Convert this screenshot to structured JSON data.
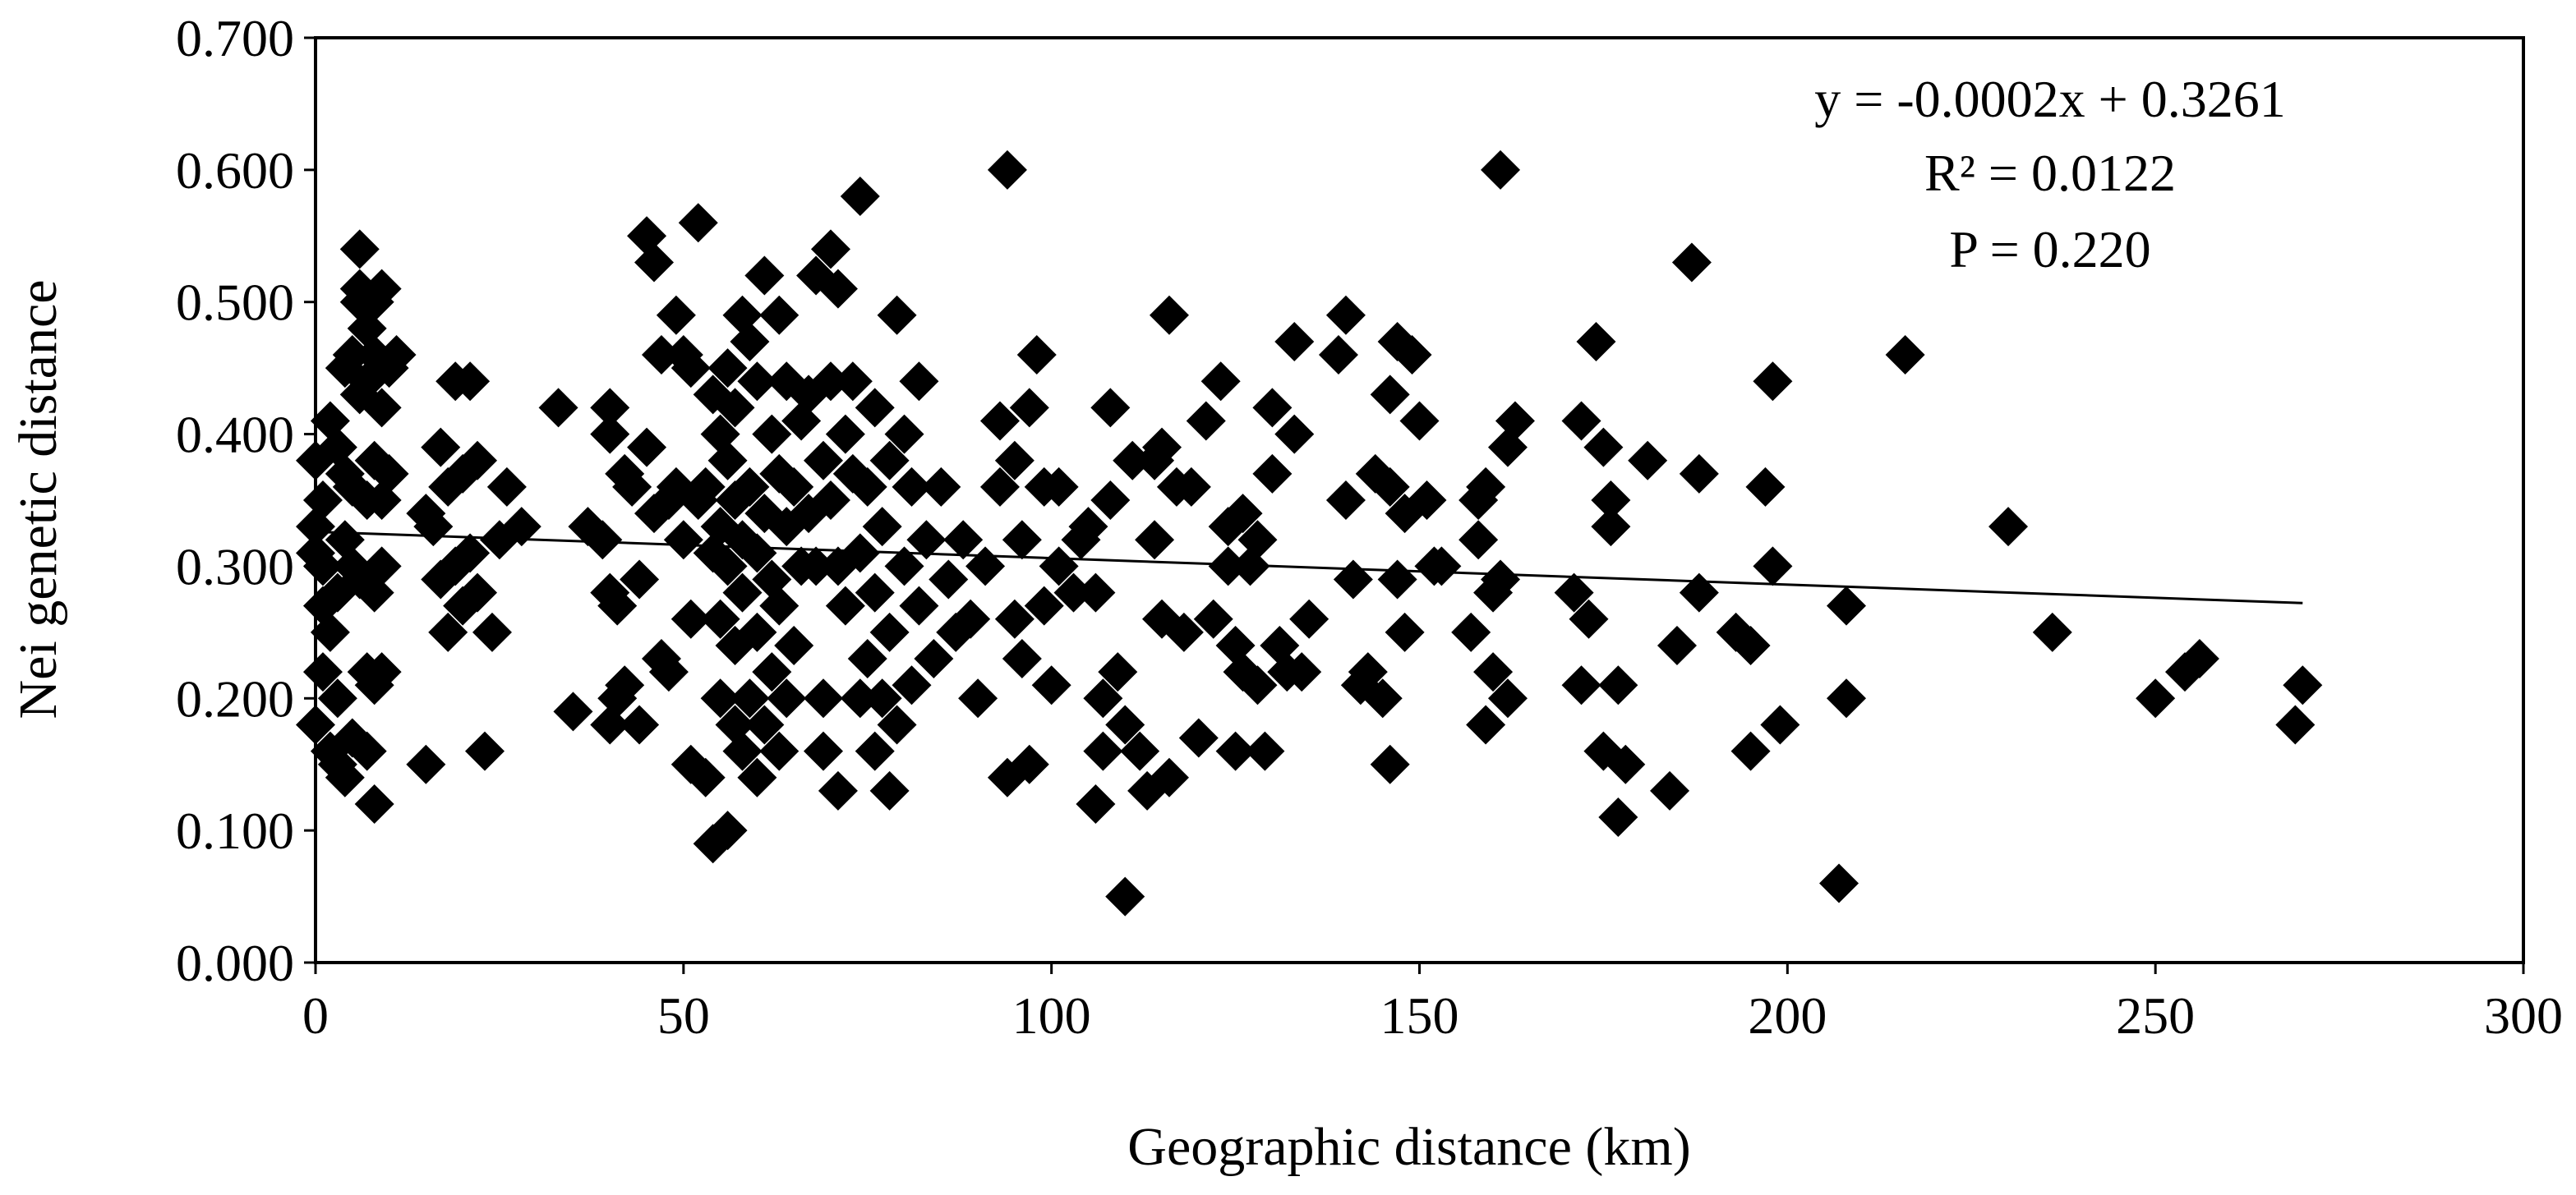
{
  "chart_data": {
    "type": "scatter",
    "title": "",
    "xlabel": "Geographic distance (km)",
    "ylabel": "Nei genetic distance",
    "xlim": [
      0,
      300
    ],
    "ylim": [
      0,
      0.7
    ],
    "x_ticks": [
      "0",
      "50",
      "100",
      "150",
      "200",
      "250",
      "300"
    ],
    "y_ticks": [
      "0.000",
      "0.100",
      "0.200",
      "0.300",
      "0.400",
      "0.500",
      "0.600",
      "0.700"
    ],
    "grid": false,
    "legend": "none",
    "marker": "diamond",
    "marker_color": "#000000",
    "annotations": [
      "y = -0.0002x + 0.3261",
      "R² = 0.0122",
      "P = 0.220"
    ],
    "trendline": {
      "slope": -0.0002,
      "intercept": 0.3261,
      "x_range": [
        0,
        270
      ]
    },
    "series": [
      {
        "points": [
          [
            0,
            0.38
          ],
          [
            0,
            0.33
          ],
          [
            0,
            0.31
          ],
          [
            0,
            0.18
          ],
          [
            1,
            0.35
          ],
          [
            1,
            0.22
          ],
          [
            1,
            0.3
          ],
          [
            1,
            0.27
          ],
          [
            2,
            0.41
          ],
          [
            2,
            0.25
          ],
          [
            2,
            0.16
          ],
          [
            3,
            0.39
          ],
          [
            3,
            0.2
          ],
          [
            3,
            0.28
          ],
          [
            3,
            0.15
          ],
          [
            4,
            0.37
          ],
          [
            4,
            0.14
          ],
          [
            4,
            0.32
          ],
          [
            4,
            0.45
          ],
          [
            5,
            0.3
          ],
          [
            5,
            0.17
          ],
          [
            5,
            0.36
          ],
          [
            5,
            0.46
          ],
          [
            6,
            0.43
          ],
          [
            6,
            0.29
          ],
          [
            6,
            0.54
          ],
          [
            6,
            0.51
          ],
          [
            6,
            0.5
          ],
          [
            7,
            0.48
          ],
          [
            7,
            0.35
          ],
          [
            7,
            0.22
          ],
          [
            7,
            0.16
          ],
          [
            7,
            0.44
          ],
          [
            8,
            0.46
          ],
          [
            8,
            0.38
          ],
          [
            8,
            0.28
          ],
          [
            8,
            0.21
          ],
          [
            8,
            0.5
          ],
          [
            8,
            0.12
          ],
          [
            9,
            0.51
          ],
          [
            9,
            0.42
          ],
          [
            9,
            0.35
          ],
          [
            9,
            0.3
          ],
          [
            9,
            0.22
          ],
          [
            10,
            0.45
          ],
          [
            10,
            0.37
          ],
          [
            11,
            0.46
          ],
          [
            15,
            0.34
          ],
          [
            15,
            0.15
          ],
          [
            16,
            0.33
          ],
          [
            17,
            0.39
          ],
          [
            17,
            0.29
          ],
          [
            18,
            0.25
          ],
          [
            18,
            0.36
          ],
          [
            19,
            0.44
          ],
          [
            19,
            0.3
          ],
          [
            20,
            0.37
          ],
          [
            20,
            0.27
          ],
          [
            21,
            0.44
          ],
          [
            21,
            0.31
          ],
          [
            22,
            0.38
          ],
          [
            22,
            0.28
          ],
          [
            23,
            0.16
          ],
          [
            24,
            0.25
          ],
          [
            25,
            0.32
          ],
          [
            26,
            0.36
          ],
          [
            28,
            0.33
          ],
          [
            33,
            0.42
          ],
          [
            35,
            0.19
          ],
          [
            37,
            0.33
          ],
          [
            39,
            0.32
          ],
          [
            40,
            0.42
          ],
          [
            40,
            0.4
          ],
          [
            40,
            0.28
          ],
          [
            40,
            0.18
          ],
          [
            41,
            0.2
          ],
          [
            41,
            0.27
          ],
          [
            42,
            0.37
          ],
          [
            42,
            0.21
          ],
          [
            43,
            0.36
          ],
          [
            44,
            0.29
          ],
          [
            44,
            0.18
          ],
          [
            45,
            0.39
          ],
          [
            45,
            0.55
          ],
          [
            46,
            0.34
          ],
          [
            46,
            0.53
          ],
          [
            47,
            0.23
          ],
          [
            47,
            0.46
          ],
          [
            48,
            0.35
          ],
          [
            48,
            0.22
          ],
          [
            49,
            0.49
          ],
          [
            49,
            0.36
          ],
          [
            50,
            0.46
          ],
          [
            50,
            0.32
          ],
          [
            51,
            0.15
          ],
          [
            51,
            0.26
          ],
          [
            51,
            0.45
          ],
          [
            52,
            0.56
          ],
          [
            52,
            0.35
          ],
          [
            53,
            0.14
          ],
          [
            53,
            0.36
          ],
          [
            54,
            0.09
          ],
          [
            54,
            0.31
          ],
          [
            54,
            0.43
          ],
          [
            55,
            0.2
          ],
          [
            55,
            0.26
          ],
          [
            55,
            0.4
          ],
          [
            55,
            0.33
          ],
          [
            56,
            0.1
          ],
          [
            56,
            0.38
          ],
          [
            56,
            0.45
          ],
          [
            56,
            0.3
          ],
          [
            57,
            0.18
          ],
          [
            57,
            0.24
          ],
          [
            57,
            0.42
          ],
          [
            57,
            0.35
          ],
          [
            58,
            0.16
          ],
          [
            58,
            0.28
          ],
          [
            58,
            0.49
          ],
          [
            58,
            0.32
          ],
          [
            59,
            0.2
          ],
          [
            59,
            0.36
          ],
          [
            59,
            0.47
          ],
          [
            60,
            0.14
          ],
          [
            60,
            0.25
          ],
          [
            60,
            0.31
          ],
          [
            60,
            0.44
          ],
          [
            61,
            0.18
          ],
          [
            61,
            0.34
          ],
          [
            61,
            0.52
          ],
          [
            62,
            0.22
          ],
          [
            62,
            0.29
          ],
          [
            62,
            0.4
          ],
          [
            63,
            0.16
          ],
          [
            63,
            0.27
          ],
          [
            63,
            0.37
          ],
          [
            63,
            0.49
          ],
          [
            64,
            0.2
          ],
          [
            64,
            0.33
          ],
          [
            64,
            0.44
          ],
          [
            65,
            0.24
          ],
          [
            65,
            0.36
          ],
          [
            66,
            0.3
          ],
          [
            66,
            0.41
          ],
          [
            67,
            0.34
          ],
          [
            67,
            0.43
          ],
          [
            68,
            0.3
          ],
          [
            68,
            0.52
          ],
          [
            69,
            0.16
          ],
          [
            69,
            0.38
          ],
          [
            69,
            0.2
          ],
          [
            70,
            0.35
          ],
          [
            70,
            0.44
          ],
          [
            70,
            0.54
          ],
          [
            71,
            0.13
          ],
          [
            71,
            0.3
          ],
          [
            71,
            0.51
          ],
          [
            72,
            0.4
          ],
          [
            72,
            0.27
          ],
          [
            73,
            0.37
          ],
          [
            73,
            0.44
          ],
          [
            74,
            0.31
          ],
          [
            74,
            0.2
          ],
          [
            74,
            0.58
          ],
          [
            75,
            0.23
          ],
          [
            75,
            0.36
          ],
          [
            76,
            0.16
          ],
          [
            76,
            0.28
          ],
          [
            76,
            0.42
          ],
          [
            77,
            0.2
          ],
          [
            77,
            0.33
          ],
          [
            78,
            0.13
          ],
          [
            78,
            0.25
          ],
          [
            78,
            0.38
          ],
          [
            79,
            0.49
          ],
          [
            79,
            0.18
          ],
          [
            80,
            0.3
          ],
          [
            80,
            0.4
          ],
          [
            81,
            0.21
          ],
          [
            81,
            0.36
          ],
          [
            82,
            0.27
          ],
          [
            82,
            0.44
          ],
          [
            83,
            0.32
          ],
          [
            84,
            0.23
          ],
          [
            85,
            0.36
          ],
          [
            86,
            0.29
          ],
          [
            87,
            0.25
          ],
          [
            88,
            0.32
          ],
          [
            89,
            0.26
          ],
          [
            90,
            0.2
          ],
          [
            91,
            0.3
          ],
          [
            93,
            0.36
          ],
          [
            93,
            0.41
          ],
          [
            94,
            0.6
          ],
          [
            94,
            0.14
          ],
          [
            95,
            0.26
          ],
          [
            95,
            0.38
          ],
          [
            96,
            0.32
          ],
          [
            96,
            0.23
          ],
          [
            97,
            0.15
          ],
          [
            97,
            0.42
          ],
          [
            98,
            0.46
          ],
          [
            99,
            0.27
          ],
          [
            99,
            0.36
          ],
          [
            100,
            0.21
          ],
          [
            101,
            0.3
          ],
          [
            101,
            0.36
          ],
          [
            103,
            0.28
          ],
          [
            104,
            0.32
          ],
          [
            105,
            0.33
          ],
          [
            106,
            0.12
          ],
          [
            106,
            0.28
          ],
          [
            107,
            0.2
          ],
          [
            107,
            0.16
          ],
          [
            108,
            0.42
          ],
          [
            108,
            0.35
          ],
          [
            109,
            0.22
          ],
          [
            110,
            0.05
          ],
          [
            110,
            0.18
          ],
          [
            111,
            0.38
          ],
          [
            112,
            0.16
          ],
          [
            113,
            0.13
          ],
          [
            114,
            0.32
          ],
          [
            114,
            0.38
          ],
          [
            115,
            0.26
          ],
          [
            115,
            0.39
          ],
          [
            116,
            0.14
          ],
          [
            116,
            0.49
          ],
          [
            117,
            0.36
          ],
          [
            118,
            0.25
          ],
          [
            119,
            0.36
          ],
          [
            120,
            0.17
          ],
          [
            121,
            0.41
          ],
          [
            122,
            0.26
          ],
          [
            123,
            0.44
          ],
          [
            124,
            0.3
          ],
          [
            124,
            0.33
          ],
          [
            125,
            0.16
          ],
          [
            125,
            0.24
          ],
          [
            126,
            0.22
          ],
          [
            126,
            0.34
          ],
          [
            127,
            0.3
          ],
          [
            128,
            0.21
          ],
          [
            128,
            0.32
          ],
          [
            129,
            0.16
          ],
          [
            130,
            0.42
          ],
          [
            130,
            0.37
          ],
          [
            131,
            0.24
          ],
          [
            132,
            0.22
          ],
          [
            133,
            0.4
          ],
          [
            133,
            0.47
          ],
          [
            134,
            0.22
          ],
          [
            135,
            0.26
          ],
          [
            139,
            0.46
          ],
          [
            140,
            0.49
          ],
          [
            140,
            0.35
          ],
          [
            141,
            0.29
          ],
          [
            142,
            0.21
          ],
          [
            143,
            0.22
          ],
          [
            144,
            0.37
          ],
          [
            145,
            0.2
          ],
          [
            146,
            0.15
          ],
          [
            146,
            0.36
          ],
          [
            146,
            0.43
          ],
          [
            147,
            0.29
          ],
          [
            147,
            0.47
          ],
          [
            148,
            0.25
          ],
          [
            148,
            0.34
          ],
          [
            149,
            0.46
          ],
          [
            150,
            0.41
          ],
          [
            151,
            0.35
          ],
          [
            152,
            0.3
          ],
          [
            153,
            0.3
          ],
          [
            157,
            0.25
          ],
          [
            158,
            0.35
          ],
          [
            158,
            0.32
          ],
          [
            159,
            0.18
          ],
          [
            159,
            0.36
          ],
          [
            160,
            0.28
          ],
          [
            160,
            0.22
          ],
          [
            161,
            0.6
          ],
          [
            161,
            0.29
          ],
          [
            162,
            0.2
          ],
          [
            162,
            0.39
          ],
          [
            163,
            0.41
          ],
          [
            171,
            0.28
          ],
          [
            172,
            0.21
          ],
          [
            172,
            0.41
          ],
          [
            173,
            0.26
          ],
          [
            174,
            0.47
          ],
          [
            175,
            0.39
          ],
          [
            175,
            0.16
          ],
          [
            176,
            0.33
          ],
          [
            176,
            0.35
          ],
          [
            177,
            0.11
          ],
          [
            177,
            0.21
          ],
          [
            178,
            0.15
          ],
          [
            181,
            0.38
          ],
          [
            184,
            0.13
          ],
          [
            185,
            0.24
          ],
          [
            187,
            0.53
          ],
          [
            188,
            0.37
          ],
          [
            188,
            0.28
          ],
          [
            193,
            0.25
          ],
          [
            195,
            0.24
          ],
          [
            195,
            0.16
          ],
          [
            197,
            0.36
          ],
          [
            198,
            0.3
          ],
          [
            198,
            0.44
          ],
          [
            199,
            0.18
          ],
          [
            207,
            0.06
          ],
          [
            208,
            0.2
          ],
          [
            208,
            0.27
          ],
          [
            216,
            0.46
          ],
          [
            230,
            0.33
          ],
          [
            236,
            0.25
          ],
          [
            250,
            0.2
          ],
          [
            254,
            0.22
          ],
          [
            256,
            0.23
          ],
          [
            269,
            0.18
          ],
          [
            270,
            0.21
          ]
        ]
      }
    ]
  }
}
